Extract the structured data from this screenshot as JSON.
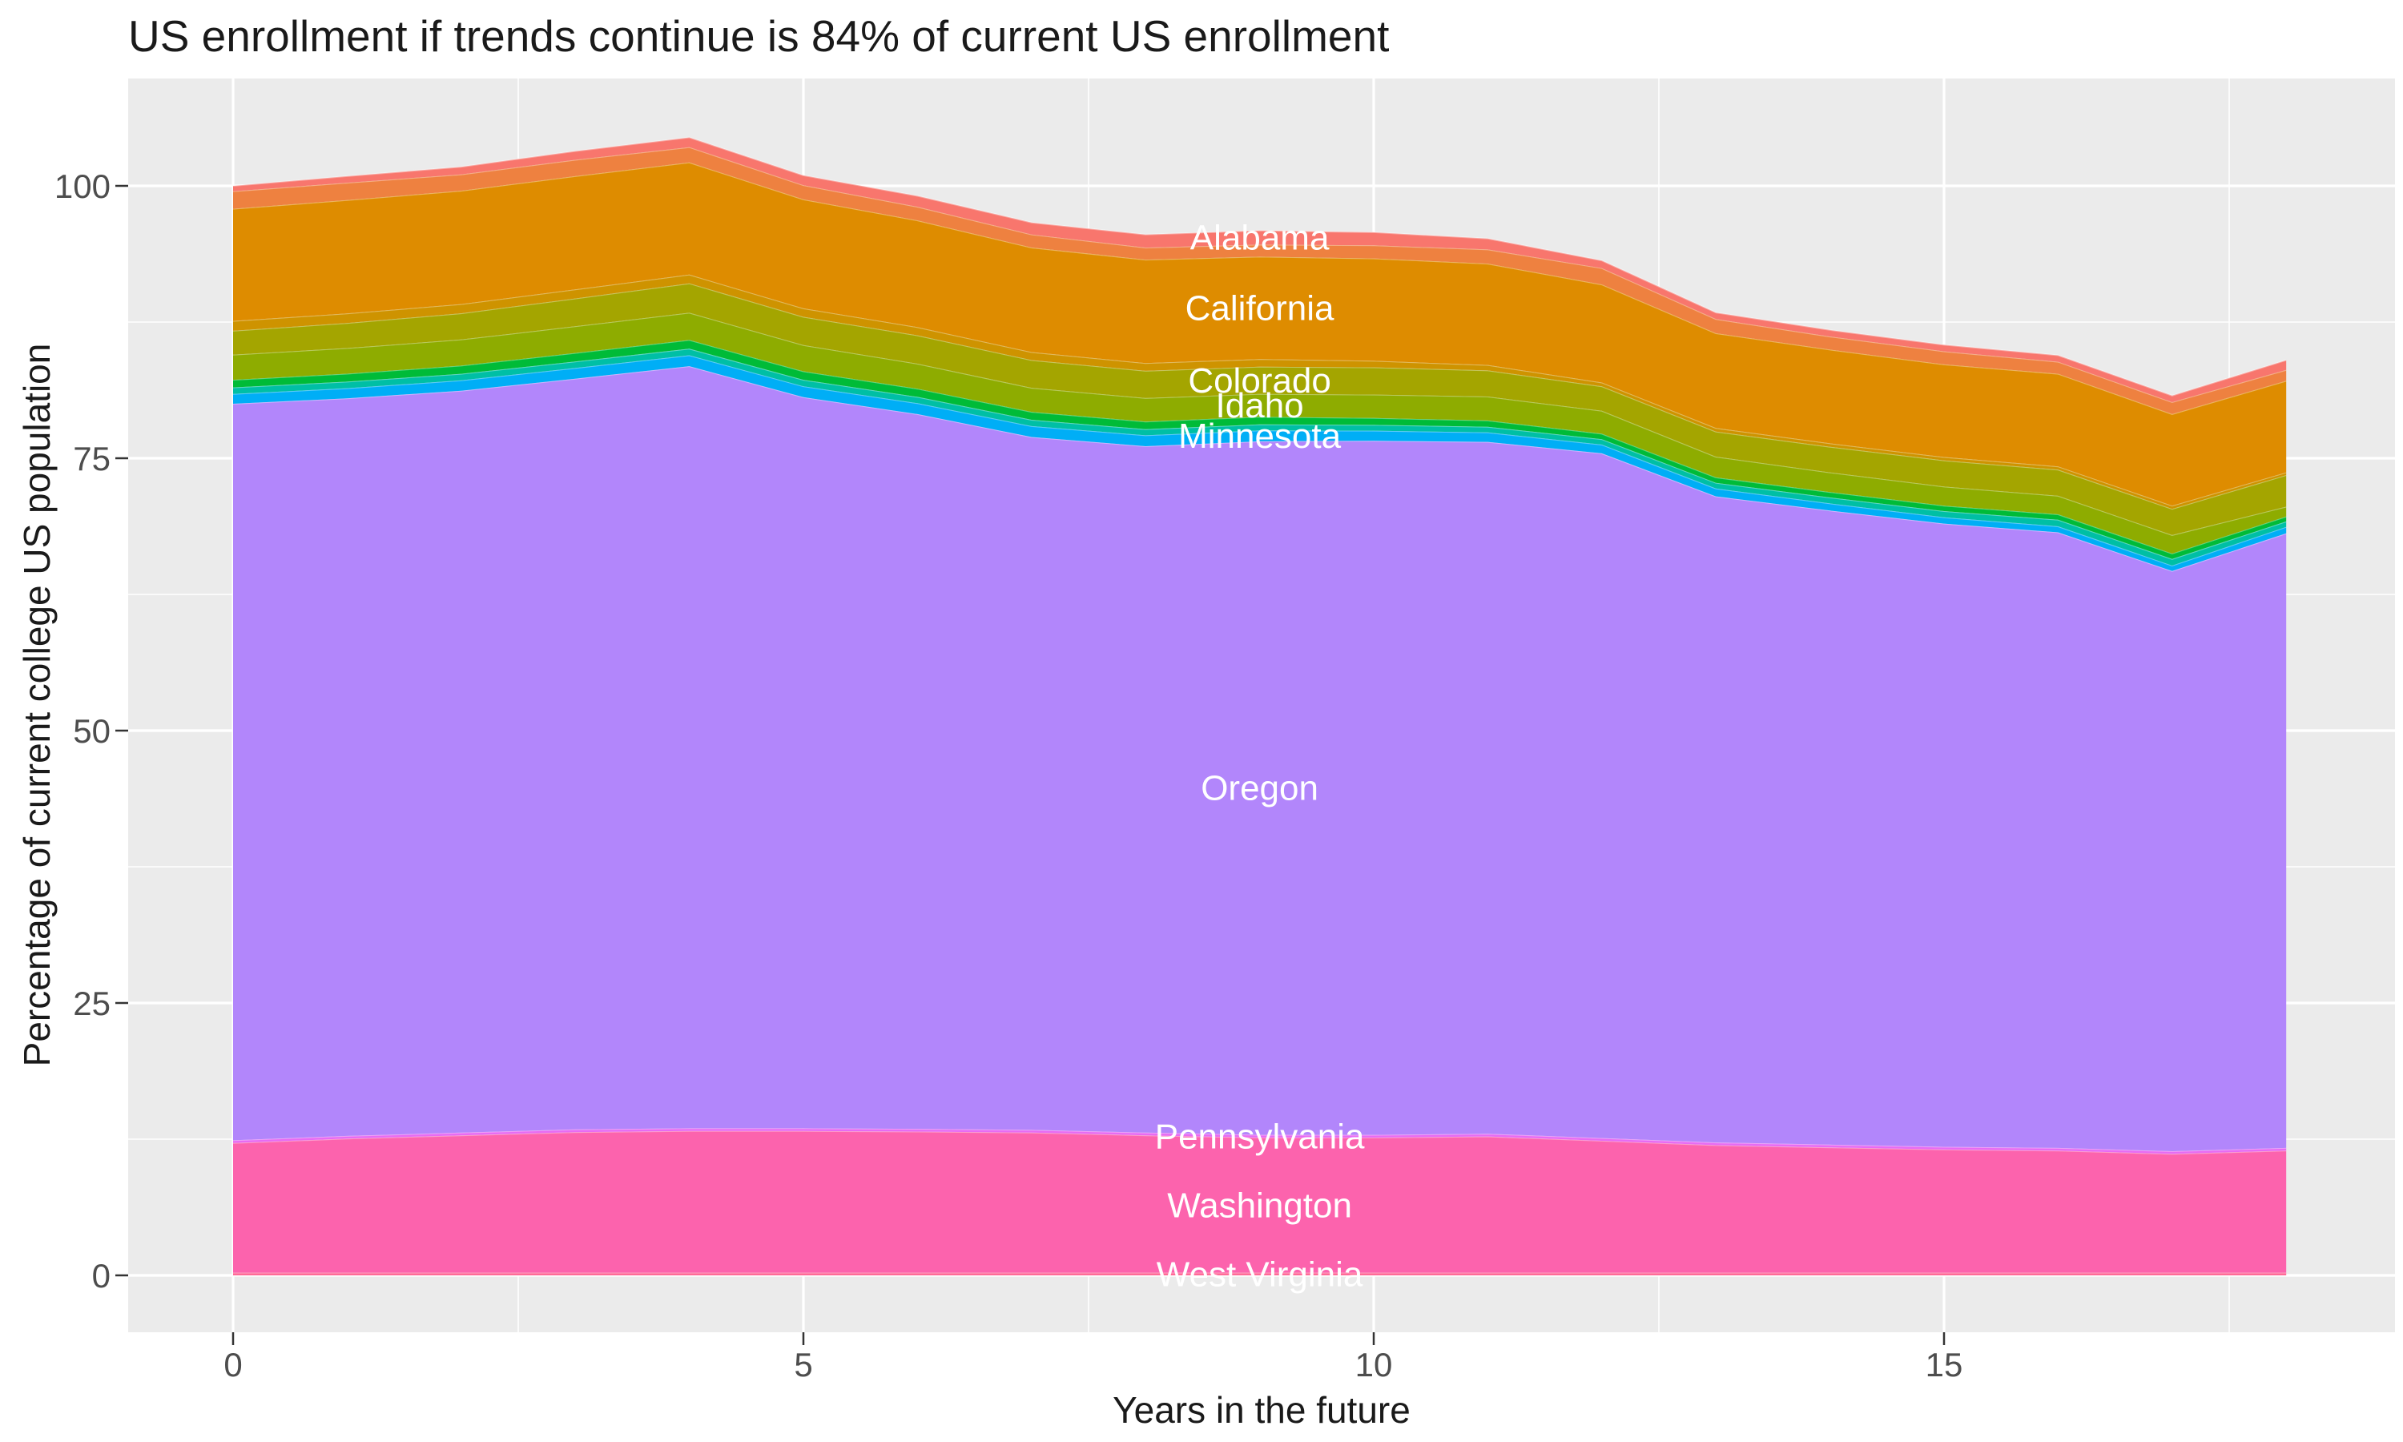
{
  "chart_data": {
    "type": "area",
    "stacked": true,
    "title": "US enrollment if trends continue is 84% of current US enrollment",
    "xlabel": "Years in the future",
    "ylabel": "Percentage of current college US population",
    "x": [
      0,
      1,
      2,
      3,
      4,
      5,
      6,
      7,
      8,
      9,
      10,
      11,
      12,
      13,
      14,
      15,
      16,
      17,
      18
    ],
    "xlim": [
      0,
      18
    ],
    "ylim": [
      0,
      104.5
    ],
    "x_ticks": [
      0,
      5,
      10,
      15
    ],
    "x_minor_gridlines": [
      2.5,
      7.5,
      12.5,
      17.5
    ],
    "y_ticks": [
      0,
      25,
      50,
      75,
      100
    ],
    "y_minor_gridlines": [
      12.5,
      37.5,
      62.5,
      87.5
    ],
    "legend_position": "none",
    "label_x": 9,
    "colors": {
      "panel_background": "#EBEBEB",
      "gridline": "#FFFFFF",
      "axis_text": "#4D4D4D",
      "tick_mark": "#333333",
      "area_label_text": "#FFFFFF",
      "band_edge_highlight": "rgba(255,255,255,0.35)"
    },
    "totals_note": "stack total is 100 at year 0, peaks ~104.5 at year 4, dips to ~81 at year 17, ends at 84 at year 18",
    "series": [
      {
        "name": "West Virginia",
        "labeled": true,
        "color": "#FF6A98",
        "values": [
          0.25,
          0.25,
          0.25,
          0.25,
          0.25,
          0.25,
          0.25,
          0.25,
          0.25,
          0.25,
          0.25,
          0.25,
          0.25,
          0.25,
          0.25,
          0.25,
          0.25,
          0.25,
          0.25
        ]
      },
      {
        "name": "Washington",
        "labeled": true,
        "color": "#FC63AD",
        "values": [
          11.9,
          12.3,
          12.6,
          12.9,
          13.0,
          13.0,
          12.95,
          12.85,
          12.6,
          12.4,
          12.4,
          12.5,
          12.1,
          11.7,
          11.5,
          11.3,
          11.2,
          10.9,
          11.2
        ]
      },
      {
        "name": "Pennsylvania",
        "labeled": true,
        "color": "#E76BF3",
        "values": [
          0.25,
          0.25,
          0.25,
          0.25,
          0.25,
          0.25,
          0.25,
          0.25,
          0.25,
          0.25,
          0.25,
          0.25,
          0.25,
          0.25,
          0.25,
          0.25,
          0.25,
          0.25,
          0.25
        ]
      },
      {
        "name": "Oregon",
        "labeled": true,
        "color": "#B286FB",
        "values": [
          67.6,
          67.7,
          68.1,
          68.9,
          69.95,
          67.1,
          65.6,
          63.6,
          63.0,
          63.65,
          63.7,
          63.5,
          62.85,
          59.3,
          58.2,
          57.2,
          56.5,
          53.25,
          56.4
        ]
      },
      {
        "name": "Minnesota",
        "labeled": true,
        "color": "#00AEF6",
        "values": [
          0.9,
          0.93,
          0.95,
          0.98,
          1.0,
          1.0,
          1.0,
          1.0,
          1.0,
          1.0,
          0.93,
          0.87,
          0.8,
          0.72,
          0.65,
          0.58,
          0.55,
          0.5,
          0.6
        ]
      },
      {
        "name": "unlabeled-teal",
        "labeled": false,
        "color": "#00BFA5",
        "values": [
          0.6,
          0.6,
          0.6,
          0.6,
          0.6,
          0.6,
          0.58,
          0.58,
          0.56,
          0.55,
          0.53,
          0.52,
          0.5,
          0.52,
          0.55,
          0.57,
          0.6,
          0.6,
          0.5
        ]
      },
      {
        "name": "unlabeled-green",
        "labeled": false,
        "color": "#00BB38",
        "values": [
          0.7,
          0.73,
          0.75,
          0.78,
          0.8,
          0.78,
          0.75,
          0.73,
          0.71,
          0.7,
          0.63,
          0.57,
          0.5,
          0.5,
          0.5,
          0.5,
          0.5,
          0.5,
          0.45
        ]
      },
      {
        "name": "Idaho",
        "labeled": true,
        "color": "#8EAC00",
        "values": [
          2.3,
          2.35,
          2.4,
          2.45,
          2.5,
          2.4,
          2.3,
          2.2,
          2.15,
          2.1,
          2.15,
          2.2,
          2.1,
          1.9,
          1.8,
          1.75,
          1.7,
          1.7,
          0.9
        ]
      },
      {
        "name": "Colorado",
        "labeled": true,
        "color": "#A4A500",
        "values": [
          2.2,
          2.3,
          2.4,
          2.55,
          2.7,
          2.6,
          2.6,
          2.55,
          2.5,
          2.5,
          2.5,
          2.4,
          2.25,
          2.3,
          2.35,
          2.4,
          2.4,
          2.4,
          2.9
        ]
      },
      {
        "name": "unlabeled-light-orange",
        "labeled": false,
        "color": "#CE9300",
        "values": [
          0.9,
          0.88,
          0.85,
          0.83,
          0.8,
          0.78,
          0.75,
          0.73,
          0.71,
          0.7,
          0.6,
          0.5,
          0.35,
          0.33,
          0.32,
          0.31,
          0.3,
          0.3,
          0.25
        ]
      },
      {
        "name": "California",
        "labeled": true,
        "color": "#DE8C00",
        "values": [
          10.3,
          10.4,
          10.4,
          10.4,
          10.3,
          10.0,
          9.8,
          9.6,
          9.5,
          9.4,
          9.4,
          9.3,
          9.0,
          8.7,
          8.6,
          8.5,
          8.5,
          8.4,
          8.4
        ]
      },
      {
        "name": "unlabeled-salmon",
        "labeled": false,
        "color": "#EE8140",
        "values": [
          1.6,
          1.6,
          1.5,
          1.5,
          1.4,
          1.3,
          1.25,
          1.2,
          1.1,
          1.1,
          1.2,
          1.3,
          1.5,
          1.3,
          1.2,
          1.2,
          1.1,
          1.1,
          1.0
        ]
      },
      {
        "name": "Alabama",
        "labeled": true,
        "color": "#F8766D",
        "values": [
          0.5,
          0.6,
          0.7,
          0.8,
          0.9,
          0.9,
          1.0,
          1.1,
          1.2,
          1.3,
          1.2,
          1.0,
          0.7,
          0.6,
          0.6,
          0.6,
          0.6,
          0.6,
          0.9
        ]
      }
    ]
  }
}
